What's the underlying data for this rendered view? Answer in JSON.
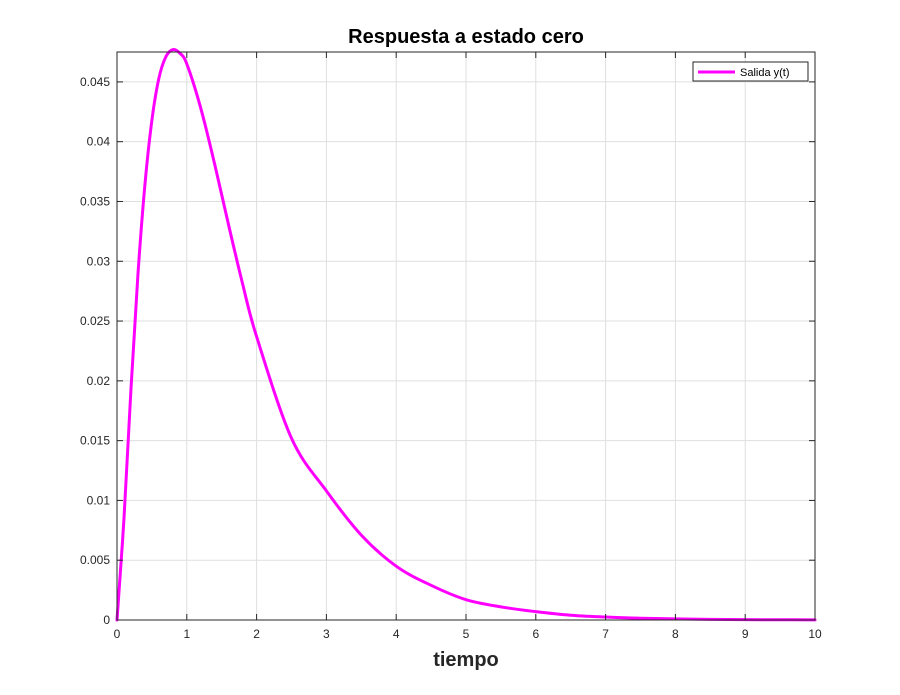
{
  "chart_data": {
    "type": "line",
    "title": "Respuesta a estado cero",
    "xlabel": "tiempo",
    "ylabel": "",
    "xlim": [
      0,
      10
    ],
    "ylim": [
      0,
      0.0475
    ],
    "grid": true,
    "legend_location": "top-right",
    "x_ticks": [
      0,
      1,
      2,
      3,
      4,
      5,
      6,
      7,
      8,
      9,
      10
    ],
    "x_tick_labels": [
      "0",
      "1",
      "2",
      "3",
      "4",
      "5",
      "6",
      "7",
      "8",
      "9",
      "10"
    ],
    "y_ticks": [
      0,
      0.005,
      0.01,
      0.015,
      0.02,
      0.025,
      0.03,
      0.035,
      0.04,
      0.045
    ],
    "y_tick_labels": [
      "0",
      "0.005",
      "0.01",
      "0.015",
      "0.02",
      "0.025",
      "0.03",
      "0.035",
      "0.04",
      "0.045"
    ],
    "series": [
      {
        "name": "Salida y(t)",
        "color": "#ff00ff",
        "x": [
          0,
          0.1,
          0.2,
          0.3,
          0.4,
          0.5,
          0.6,
          0.7,
          0.8,
          0.9,
          1.0,
          1.2,
          1.4,
          1.6,
          1.8,
          2.0,
          2.5,
          3.0,
          3.5,
          4.0,
          4.5,
          5.0,
          5.5,
          6.0,
          6.5,
          7.0,
          7.5,
          8.0,
          8.5,
          9.0,
          9.5,
          10.0
        ],
        "y": [
          0,
          0.0085,
          0.0193,
          0.0289,
          0.0364,
          0.0418,
          0.0453,
          0.0471,
          0.0477,
          0.0474,
          0.0465,
          0.0428,
          0.0381,
          0.033,
          0.0281,
          0.0237,
          0.0152,
          0.0108,
          0.0071,
          0.0045,
          0.0029,
          0.0017,
          0.0011,
          0.0007,
          0.0004,
          0.00025,
          0.00015,
          9e-05,
          5e-05,
          3e-05,
          2e-05,
          1e-05
        ]
      }
    ]
  }
}
